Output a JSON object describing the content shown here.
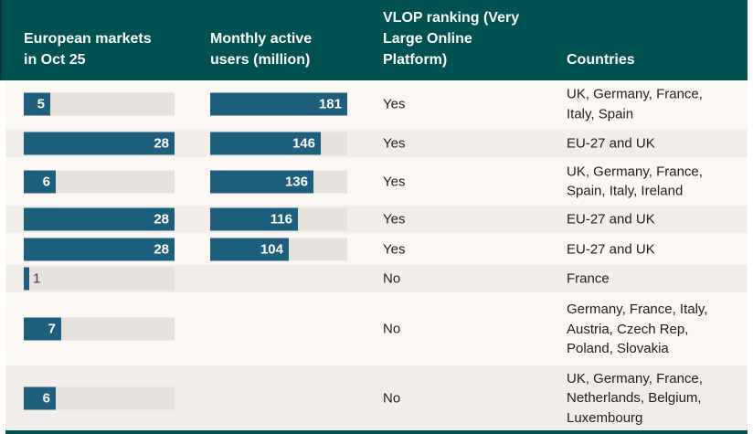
{
  "header": {
    "col_markets": "European markets in Oct 25",
    "col_mau": "Monthly active users (million)",
    "col_vlop": "VLOP ranking (Very Large Online Platform)",
    "col_countries": "Countries"
  },
  "chart_data": {
    "type": "table",
    "title": "European markets in Oct 25",
    "columns": [
      "European markets in Oct 25",
      "Monthly active users (million)",
      "VLOP ranking (Very Large Online Platform)",
      "Countries"
    ],
    "bar_scales": {
      "european_markets_max": 28,
      "mau_million_max": 181
    },
    "rows": [
      {
        "european_markets": 5,
        "mau_million": 181,
        "vlop": "Yes",
        "countries": "UK, Germany, France, Italy, Spain"
      },
      {
        "european_markets": 28,
        "mau_million": 146,
        "vlop": "Yes",
        "countries": "EU-27 and UK"
      },
      {
        "european_markets": 6,
        "mau_million": 136,
        "vlop": "Yes",
        "countries": "UK, Germany, France, Spain, Italy, Ireland"
      },
      {
        "european_markets": 28,
        "mau_million": 116,
        "vlop": "Yes",
        "countries": "EU-27 and UK"
      },
      {
        "european_markets": 28,
        "mau_million": 104,
        "vlop": "Yes",
        "countries": "EU-27 and UK"
      },
      {
        "european_markets": 1,
        "mau_million": null,
        "vlop": "No",
        "countries": "France"
      },
      {
        "european_markets": 7,
        "mau_million": null,
        "vlop": "No",
        "countries": "Germany, France, Italy, Austria, Czech Rep, Poland, Slovakia"
      },
      {
        "european_markets": 6,
        "mau_million": null,
        "vlop": "No",
        "countries": "UK, Germany, France, Netherlands, Belgium, Luxembourg"
      }
    ]
  },
  "colors": {
    "header_teal": "#005152",
    "bar_blue": "#1d5f7c",
    "row_light": "#faf7f4",
    "row_gray": "#f0edea",
    "track_gray": "#e5e1dd",
    "text_dark": "#212121",
    "bar_label_white": "#ffffff"
  }
}
